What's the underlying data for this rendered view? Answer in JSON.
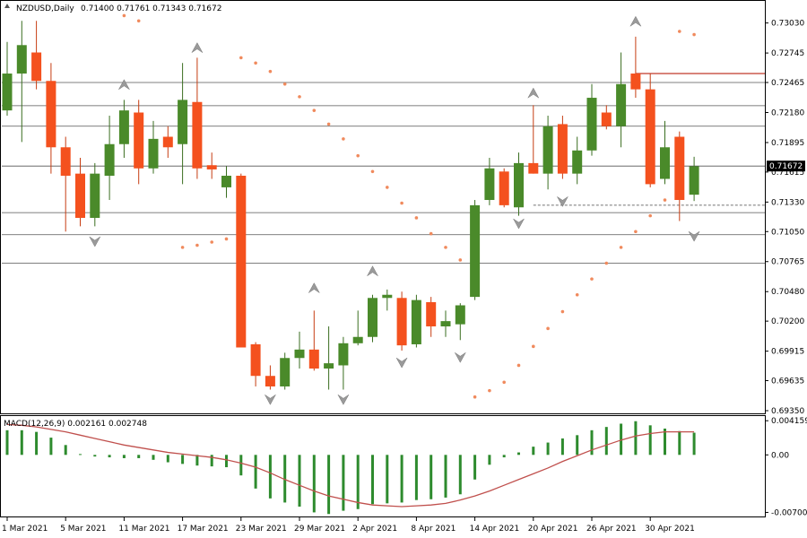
{
  "chart_data": [
    {
      "type": "candlestick",
      "symbol_label": "NZDUSD,Daily",
      "ohlc_label": "0.71400 0.71761 0.71343 0.71672",
      "y_ticks": [
        "0.73030",
        "0.72745",
        "0.72465",
        "0.72180",
        "0.71895",
        "0.71615",
        "0.71330",
        "0.71050",
        "0.70765",
        "0.70480",
        "0.70200",
        "0.69915",
        "0.69635",
        "0.69350"
      ],
      "ylim": [
        0.6935,
        0.7318
      ],
      "current_price": 0.71672,
      "current_price_label": "0.71672",
      "x_labels": [
        {
          "date": "1 Mar 2021",
          "index": 0
        },
        {
          "date": "5 Mar 2021",
          "index": 4
        },
        {
          "date": "11 Mar 2021",
          "index": 8
        },
        {
          "date": "17 Mar 2021",
          "index": 12
        },
        {
          "date": "23 Mar 2021",
          "index": 16
        },
        {
          "date": "29 Mar 2021",
          "index": 20
        },
        {
          "date": "2 Apr 2021",
          "index": 24
        },
        {
          "date": "8 Apr 2021",
          "index": 28
        },
        {
          "date": "14 Apr 2021",
          "index": 32
        },
        {
          "date": "20 Apr 2021",
          "index": 36
        },
        {
          "date": "26 Apr 2021",
          "index": 40
        },
        {
          "date": "30 Apr 2021",
          "index": 44
        }
      ],
      "candles": [
        {
          "o": 0.722,
          "h": 0.7285,
          "l": 0.7215,
          "c": 0.7255
        },
        {
          "o": 0.7255,
          "h": 0.7305,
          "l": 0.719,
          "c": 0.7282
        },
        {
          "o": 0.7275,
          "h": 0.7305,
          "l": 0.724,
          "c": 0.7248
        },
        {
          "o": 0.7248,
          "h": 0.7265,
          "l": 0.716,
          "c": 0.7185
        },
        {
          "o": 0.7185,
          "h": 0.7195,
          "l": 0.7105,
          "c": 0.7158
        },
        {
          "o": 0.716,
          "h": 0.7175,
          "l": 0.711,
          "c": 0.7118
        },
        {
          "o": 0.7118,
          "h": 0.717,
          "l": 0.711,
          "c": 0.716
        },
        {
          "o": 0.7158,
          "h": 0.7215,
          "l": 0.7135,
          "c": 0.7188
        },
        {
          "o": 0.7188,
          "h": 0.723,
          "l": 0.7175,
          "c": 0.722
        },
        {
          "o": 0.7218,
          "h": 0.723,
          "l": 0.715,
          "c": 0.7165
        },
        {
          "o": 0.7165,
          "h": 0.721,
          "l": 0.716,
          "c": 0.7193
        },
        {
          "o": 0.7195,
          "h": 0.7205,
          "l": 0.7175,
          "c": 0.7185
        },
        {
          "o": 0.7188,
          "h": 0.7265,
          "l": 0.715,
          "c": 0.723
        },
        {
          "o": 0.7228,
          "h": 0.727,
          "l": 0.7155,
          "c": 0.7165
        },
        {
          "o": 0.7168,
          "h": 0.718,
          "l": 0.7155,
          "c": 0.7164
        },
        {
          "o": 0.7147,
          "h": 0.7167,
          "l": 0.7137,
          "c": 0.7158
        },
        {
          "o": 0.7158,
          "h": 0.716,
          "l": 0.6995,
          "c": 0.6995
        },
        {
          "o": 0.6998,
          "h": 0.7,
          "l": 0.6958,
          "c": 0.6968
        },
        {
          "o": 0.6968,
          "h": 0.6978,
          "l": 0.6955,
          "c": 0.6958
        },
        {
          "o": 0.6958,
          "h": 0.699,
          "l": 0.6955,
          "c": 0.6985
        },
        {
          "o": 0.6985,
          "h": 0.701,
          "l": 0.6975,
          "c": 0.6993
        },
        {
          "o": 0.6993,
          "h": 0.703,
          "l": 0.6973,
          "c": 0.6975
        },
        {
          "o": 0.6975,
          "h": 0.7015,
          "l": 0.6955,
          "c": 0.698
        },
        {
          "o": 0.6978,
          "h": 0.7005,
          "l": 0.6955,
          "c": 0.6999
        },
        {
          "o": 0.6999,
          "h": 0.703,
          "l": 0.6997,
          "c": 0.7005
        },
        {
          "o": 0.7005,
          "h": 0.7045,
          "l": 0.7,
          "c": 0.7042
        },
        {
          "o": 0.7042,
          "h": 0.705,
          "l": 0.703,
          "c": 0.7045
        },
        {
          "o": 0.7042,
          "h": 0.7048,
          "l": 0.6992,
          "c": 0.6997
        },
        {
          "o": 0.6998,
          "h": 0.7045,
          "l": 0.6995,
          "c": 0.704
        },
        {
          "o": 0.7038,
          "h": 0.7043,
          "l": 0.7005,
          "c": 0.7015
        },
        {
          "o": 0.7015,
          "h": 0.703,
          "l": 0.7005,
          "c": 0.702
        },
        {
          "o": 0.7017,
          "h": 0.7037,
          "l": 0.7002,
          "c": 0.7035
        },
        {
          "o": 0.7043,
          "h": 0.7135,
          "l": 0.704,
          "c": 0.713
        },
        {
          "o": 0.7135,
          "h": 0.7175,
          "l": 0.713,
          "c": 0.7165
        },
        {
          "o": 0.7162,
          "h": 0.7165,
          "l": 0.7128,
          "c": 0.713
        },
        {
          "o": 0.7128,
          "h": 0.718,
          "l": 0.712,
          "c": 0.717
        },
        {
          "o": 0.717,
          "h": 0.7225,
          "l": 0.716,
          "c": 0.716
        },
        {
          "o": 0.716,
          "h": 0.7215,
          "l": 0.7145,
          "c": 0.7205
        },
        {
          "o": 0.7207,
          "h": 0.7215,
          "l": 0.7155,
          "c": 0.716
        },
        {
          "o": 0.716,
          "h": 0.7195,
          "l": 0.715,
          "c": 0.7182
        },
        {
          "o": 0.7182,
          "h": 0.7245,
          "l": 0.7177,
          "c": 0.7232
        },
        {
          "o": 0.7218,
          "h": 0.7225,
          "l": 0.7202,
          "c": 0.7205
        },
        {
          "o": 0.7205,
          "h": 0.7275,
          "l": 0.7185,
          "c": 0.7245
        },
        {
          "o": 0.7255,
          "h": 0.729,
          "l": 0.7232,
          "c": 0.724
        },
        {
          "o": 0.724,
          "h": 0.7255,
          "l": 0.7147,
          "c": 0.715
        },
        {
          "o": 0.7155,
          "h": 0.721,
          "l": 0.715,
          "c": 0.7185
        },
        {
          "o": 0.7195,
          "h": 0.72,
          "l": 0.7115,
          "c": 0.7135
        },
        {
          "o": 0.714,
          "h": 0.7176,
          "l": 0.7134,
          "c": 0.7167
        }
      ],
      "sar_points": [
        [
          8,
          0.731
        ],
        [
          9,
          0.7305
        ],
        [
          12,
          0.709
        ],
        [
          13,
          0.7092
        ],
        [
          14,
          0.7095
        ],
        [
          15,
          0.7098
        ],
        [
          16,
          0.727
        ],
        [
          17,
          0.7265
        ],
        [
          18,
          0.7257
        ],
        [
          19,
          0.7245
        ],
        [
          20,
          0.7233
        ],
        [
          21,
          0.722
        ],
        [
          22,
          0.7207
        ],
        [
          23,
          0.7193
        ],
        [
          24,
          0.7177
        ],
        [
          25,
          0.7162
        ],
        [
          26,
          0.7147
        ],
        [
          27,
          0.7132
        ],
        [
          28,
          0.7118
        ],
        [
          29,
          0.7103
        ],
        [
          30,
          0.709
        ],
        [
          31,
          0.7078
        ],
        [
          32,
          0.6948
        ],
        [
          33,
          0.6954
        ],
        [
          34,
          0.6962
        ],
        [
          35,
          0.6978
        ],
        [
          36,
          0.6996
        ],
        [
          37,
          0.7013
        ],
        [
          38,
          0.7029
        ],
        [
          39,
          0.7045
        ],
        [
          40,
          0.706
        ],
        [
          41,
          0.7075
        ],
        [
          42,
          0.709
        ],
        [
          43,
          0.7105
        ],
        [
          44,
          0.712
        ],
        [
          45,
          0.7135
        ],
        [
          46,
          0.7295
        ],
        [
          47,
          0.7292
        ]
      ],
      "fractals_up": [
        [
          8,
          0.7245
        ],
        [
          13,
          0.728
        ],
        [
          25,
          0.7068
        ],
        [
          21,
          0.7052
        ],
        [
          36,
          0.7237
        ],
        [
          43,
          0.7305
        ]
      ],
      "fractals_down": [
        [
          6,
          0.7095
        ],
        [
          18,
          0.6945
        ],
        [
          23,
          0.6945
        ],
        [
          27,
          0.698
        ],
        [
          31,
          0.6985
        ],
        [
          35,
          0.7112
        ],
        [
          38,
          0.7133
        ],
        [
          47,
          0.71
        ]
      ],
      "h_lines": [
        0.72465,
        0.72245,
        0.7205,
        0.71672,
        0.7123,
        0.7102,
        0.7075
      ],
      "resistance": {
        "price": 0.7255,
        "from_index": 43
      },
      "dashed_level": {
        "price": 0.713,
        "from_index": 36
      }
    },
    {
      "type": "bar+line",
      "label": "MACD(12,26,9) 0.002161 0.002748",
      "y_ticks": [
        "0.004159",
        "0.00",
        "-0.007003"
      ],
      "ylim": [
        -0.0075,
        0.0044
      ],
      "histogram": [
        0.003,
        0.003,
        0.0028,
        0.0021,
        0.0012,
        0.0001,
        -0.0002,
        -0.0003,
        -0.0004,
        -0.0004,
        -0.0006,
        -0.0009,
        -0.0011,
        -0.0013,
        -0.0014,
        -0.0015,
        -0.0025,
        -0.0041,
        -0.0053,
        -0.0058,
        -0.0063,
        -0.007,
        -0.0072,
        -0.0068,
        -0.0066,
        -0.006,
        -0.0059,
        -0.0058,
        -0.0055,
        -0.0054,
        -0.0052,
        -0.0048,
        -0.003,
        -0.0012,
        -0.0003,
        0.0003,
        0.001,
        0.0015,
        0.002,
        0.0024,
        0.003,
        0.0034,
        0.0038,
        0.0041,
        0.0036,
        0.0032,
        0.0029,
        0.0027
      ],
      "signal": [
        0.0037,
        0.0036,
        0.0034,
        0.0031,
        0.0028,
        0.0024,
        0.002,
        0.0016,
        0.0012,
        0.0009,
        0.0006,
        0.0003,
        0.0001,
        -0.0001,
        -0.0003,
        -0.0006,
        -0.001,
        -0.0015,
        -0.0022,
        -0.003,
        -0.0037,
        -0.0044,
        -0.005,
        -0.0054,
        -0.0058,
        -0.0061,
        -0.0062,
        -0.0063,
        -0.0062,
        -0.0061,
        -0.0059,
        -0.0055,
        -0.005,
        -0.0044,
        -0.0037,
        -0.003,
        -0.0023,
        -0.0016,
        -0.0008,
        -0.0001,
        0.0006,
        0.0012,
        0.0018,
        0.0023,
        0.0026,
        0.0028,
        0.0028,
        0.0028
      ]
    }
  ]
}
